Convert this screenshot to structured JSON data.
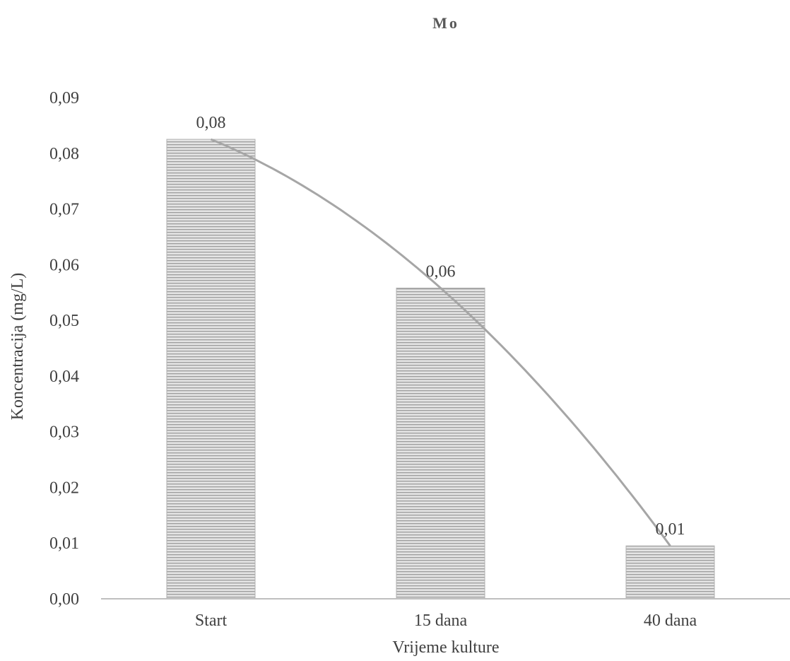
{
  "chart_data": {
    "type": "bar",
    "title": "Mo",
    "xlabel": "Vrijeme kulture",
    "ylabel": "Koncentracija (mg/L)",
    "categories": [
      "Start",
      "15 dana",
      "40 dana"
    ],
    "values": [
      0.0825,
      0.0558,
      0.0095
    ],
    "data_labels": [
      "0,08",
      "0,06",
      "0,01"
    ],
    "ylim": [
      0,
      0.09
    ],
    "yticks": [
      "0,00",
      "0,01",
      "0,02",
      "0,03",
      "0,04",
      "0,05",
      "0,06",
      "0,07",
      "0,08",
      "0,09"
    ],
    "trendline": "polynomial",
    "grid": false,
    "legend": "none",
    "colors": {
      "bar_fill": "#e0e0e0",
      "bar_stripe": "#a0a0a0",
      "trendline": "#a6a6a6",
      "axis": "#bfbfbf",
      "text": "#404040"
    }
  }
}
